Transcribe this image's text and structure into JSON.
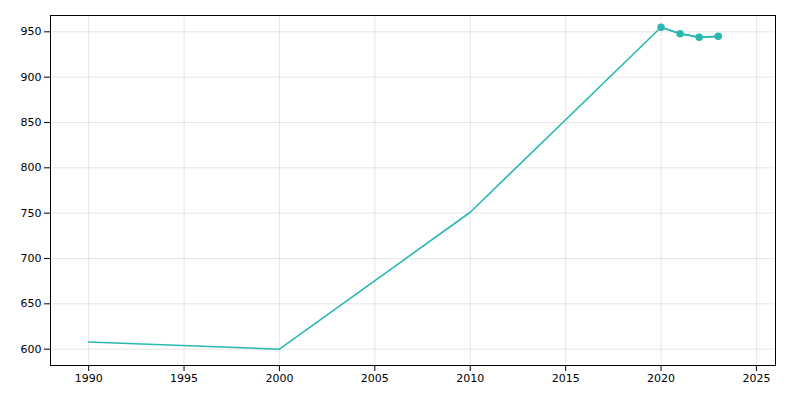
{
  "chart_data": {
    "type": "line",
    "x": [
      1990,
      2000,
      2010,
      2020,
      2021,
      2022,
      2023
    ],
    "series": [
      {
        "color": "#2ab8b0",
        "values": [
          608,
          600,
          751,
          955,
          948,
          944,
          945
        ]
      },
      {
        "color": "#2ab8b0",
        "marker": "o",
        "values": [
          null,
          null,
          null,
          955,
          948,
          944,
          945
        ]
      }
    ],
    "xlim": [
      1988,
      2026
    ],
    "ylim": [
      582,
      968
    ],
    "xticks": [
      1990,
      1995,
      2000,
      2005,
      2010,
      2015,
      2020,
      2025
    ],
    "yticks": [
      600,
      650,
      700,
      750,
      800,
      850,
      900,
      950
    ],
    "grid": true
  }
}
